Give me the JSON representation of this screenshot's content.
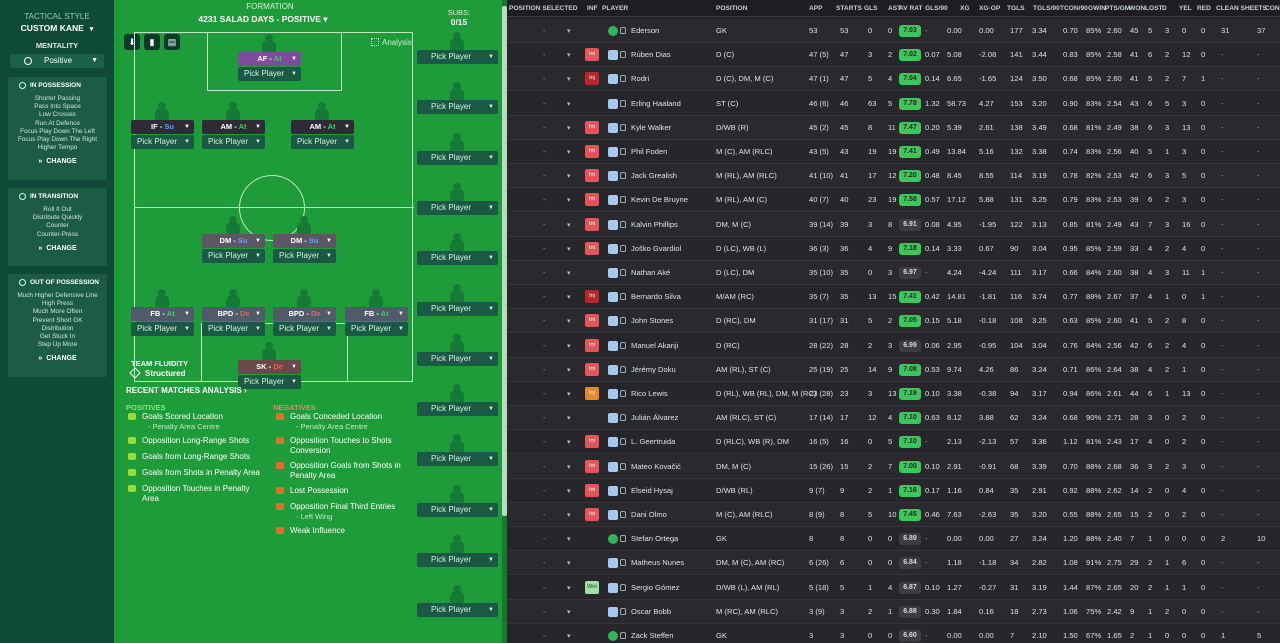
{
  "left": {
    "title": "TACTICAL STYLE",
    "name": "CUSTOM KANE",
    "mentality_label": "MENTALITY",
    "mentality_value": "Positive",
    "in_possession": {
      "title": "IN POSSESSION",
      "items": [
        "Shorter Passing",
        "Pass Into Space",
        "Low Crosses",
        "Run At Defence",
        "Focus Play Down The Left",
        "Focus Play Down The Right",
        "Higher Tempo"
      ],
      "change": "CHANGE"
    },
    "in_transition": {
      "title": "IN TRANSITION",
      "items": [
        "Roll It Out",
        "Distribute Quickly",
        "Counter",
        "Counter-Press"
      ],
      "change": "CHANGE"
    },
    "out_possession": {
      "title": "OUT OF POSSESSION",
      "items": [
        "Much Higher Defensive Line",
        "High Press",
        "Much More Often",
        "Prevent Short GK",
        "Distribution",
        "Get Stuck In",
        "Step Up More"
      ],
      "change": "CHANGE"
    }
  },
  "formation": {
    "header": "FORMATION",
    "name": "4231 SALAD DAYS - POSITIVE",
    "analysis": "Analysis",
    "pick": "Pick Player",
    "roles": [
      {
        "pos": "AF",
        "duty": "At",
        "duty_class": "",
        "style": "rpurp"
      },
      {
        "pos": "IF",
        "duty": "Su",
        "duty_class": "su",
        "style": ""
      },
      {
        "pos": "AM",
        "duty": "At",
        "duty_class": "",
        "style": ""
      },
      {
        "pos": "AM",
        "duty": "At",
        "duty_class": "",
        "style": ""
      },
      {
        "pos": "DM",
        "duty": "Su",
        "duty_class": "su",
        "style": "rdm"
      },
      {
        "pos": "DM",
        "duty": "Su",
        "duty_class": "su",
        "style": "rdm"
      },
      {
        "pos": "FB",
        "duty": "At",
        "duty_class": "",
        "style": "rfb"
      },
      {
        "pos": "BPD",
        "duty": "De",
        "duty_class": "de",
        "style": "rfb"
      },
      {
        "pos": "BPD",
        "duty": "De",
        "duty_class": "de",
        "style": "rfb"
      },
      {
        "pos": "FB",
        "duty": "At",
        "duty_class": "",
        "style": "rfb"
      },
      {
        "pos": "SK",
        "duty": "De",
        "duty_class": "de",
        "style": "rsk"
      }
    ],
    "fluidity_label": "TEAM FLUIDITY",
    "fluidity_value": "Structured",
    "recent": "RECENT MATCHES ANALYSIS",
    "positives_title": "POSITIVES",
    "negatives_title": "NEGATIVES",
    "positives": [
      {
        "t": "Goals Scored Location",
        "s": "- Penalty Area Centre"
      },
      {
        "t": "Opposition Long-Range Shots",
        "s": ""
      },
      {
        "t": "Goals from Long-Range Shots",
        "s": ""
      },
      {
        "t": "Goals from Shots in Penalty Area",
        "s": ""
      },
      {
        "t": "Opposition Touches in Penalty Area",
        "s": ""
      }
    ],
    "negatives": [
      {
        "t": "Goals Conceded Location",
        "s": "- Penalty Area Centre"
      },
      {
        "t": "Opposition Touches to Shots Conversion",
        "s": ""
      },
      {
        "t": "Opposition Goals from Shots in Penalty Area",
        "s": ""
      },
      {
        "t": "Lost Possession",
        "s": ""
      },
      {
        "t": "Opposition Final Third Entries",
        "s": "- Left Wing"
      },
      {
        "t": "Weak Influence",
        "s": ""
      }
    ]
  },
  "subs": {
    "header": "SUBS:",
    "count": "0/15",
    "pick": "Pick Player"
  },
  "table": {
    "headers": [
      "POSITION SELECTED",
      "INF",
      "PLAYER",
      "POSITION",
      "APP",
      "STARTS",
      "GLS",
      "AST",
      "AV RAT",
      "GLS/90",
      "XG",
      "XG-OP",
      "TGLS",
      "TGLS/90",
      "TCON/90",
      "GWIN",
      "PTS/GM",
      "WON",
      "LOST",
      "D",
      "YEL",
      "RED",
      "CLEAN SHEETS",
      "CONC"
    ],
    "rows": [
      {
        "inf": "",
        "shirt": "gk",
        "name": "Ederson",
        "pos": "GK",
        "app": "53",
        "starts": "53",
        "gls": "0",
        "ast": "0",
        "rat": "7.03",
        "rc": "g",
        "g90": "-",
        "xg": "0.00",
        "xgop": "0.00",
        "tgls": "177",
        "t90": "3.34",
        "tc90": "0.70",
        "gwin": "85%",
        "ptsgm": "2.60",
        "won": "45",
        "lost": "5",
        "d": "3",
        "yel": "0",
        "red": "0",
        "cs": "31",
        "conc": "37"
      },
      {
        "inf": "Int",
        "infc": "int",
        "shirt": "",
        "name": "Rúben Dias",
        "pos": "D (C)",
        "app": "47 (5)",
        "starts": "47",
        "gls": "3",
        "ast": "2",
        "rat": "7.02",
        "rc": "g",
        "g90": "0.07",
        "xg": "5.08",
        "xgop": "-2.08",
        "tgls": "141",
        "t90": "3.44",
        "tc90": "0.83",
        "gwin": "85%",
        "ptsgm": "2.58",
        "won": "41",
        "lost": "6",
        "d": "2",
        "yel": "12",
        "red": "0",
        "cs": "-",
        "conc": "-"
      },
      {
        "inf": "Inj",
        "infc": "inj",
        "shirt": "",
        "name": "Rodri",
        "pos": "D (C), DM, M (C)",
        "app": "47 (1)",
        "starts": "47",
        "gls": "5",
        "ast": "4",
        "rat": "7.04",
        "rc": "g",
        "g90": "0.14",
        "xg": "6.65",
        "xgop": "-1.65",
        "tgls": "124",
        "t90": "3.50",
        "tc90": "0.68",
        "gwin": "85%",
        "ptsgm": "2.60",
        "won": "41",
        "lost": "5",
        "d": "2",
        "yel": "7",
        "red": "1",
        "cs": "-",
        "conc": "-"
      },
      {
        "inf": "",
        "shirt": "",
        "name": "Erling Haaland",
        "pos": "ST (C)",
        "app": "46 (6)",
        "starts": "46",
        "gls": "63",
        "ast": "5",
        "rat": "7.78",
        "rc": "g",
        "g90": "1.32",
        "xg": "58.73",
        "xgop": "4.27",
        "tgls": "153",
        "t90": "3.20",
        "tc90": "0.90",
        "gwin": "83%",
        "ptsgm": "2.54",
        "won": "43",
        "lost": "6",
        "d": "5",
        "yel": "3",
        "red": "0",
        "cs": "-",
        "conc": "-"
      },
      {
        "inf": "Int",
        "infc": "int",
        "shirt": "",
        "name": "Kyle Walker",
        "pos": "D/WB (R)",
        "app": "45 (2)",
        "starts": "45",
        "gls": "8",
        "ast": "11",
        "rat": "7.47",
        "rc": "g",
        "g90": "0.20",
        "xg": "5.39",
        "xgop": "2.61",
        "tgls": "138",
        "t90": "3.49",
        "tc90": "0.68",
        "gwin": "81%",
        "ptsgm": "2.49",
        "won": "38",
        "lost": "6",
        "d": "3",
        "yel": "13",
        "red": "0",
        "cs": "-",
        "conc": "-"
      },
      {
        "inf": "Int",
        "infc": "int",
        "shirt": "",
        "name": "Phil Foden",
        "pos": "M (C), AM (RLC)",
        "app": "43 (5)",
        "starts": "43",
        "gls": "19",
        "ast": "19",
        "rat": "7.41",
        "rc": "g",
        "g90": "0.49",
        "xg": "13.84",
        "xgop": "5.16",
        "tgls": "132",
        "t90": "3.38",
        "tc90": "0.74",
        "gwin": "83%",
        "ptsgm": "2.56",
        "won": "40",
        "lost": "5",
        "d": "1",
        "yel": "3",
        "red": "0",
        "cs": "-",
        "conc": "-"
      },
      {
        "inf": "Int",
        "infc": "int",
        "shirt": "",
        "name": "Jack Grealish",
        "pos": "M (RL), AM (RLC)",
        "app": "41 (10)",
        "starts": "41",
        "gls": "17",
        "ast": "12",
        "rat": "7.20",
        "rc": "g",
        "g90": "0.48",
        "xg": "8.45",
        "xgop": "8.55",
        "tgls": "114",
        "t90": "3.19",
        "tc90": "0.78",
        "gwin": "82%",
        "ptsgm": "2.53",
        "won": "42",
        "lost": "6",
        "d": "3",
        "yel": "5",
        "red": "0",
        "cs": "-",
        "conc": "-"
      },
      {
        "inf": "Int",
        "infc": "int",
        "shirt": "",
        "name": "Kevin De Bruyne",
        "pos": "M (RL), AM (C)",
        "app": "40 (7)",
        "starts": "40",
        "gls": "23",
        "ast": "19",
        "rat": "7.58",
        "rc": "g",
        "g90": "0.57",
        "xg": "17.12",
        "xgop": "5.88",
        "tgls": "131",
        "t90": "3.25",
        "tc90": "0.79",
        "gwin": "83%",
        "ptsgm": "2.53",
        "won": "39",
        "lost": "6",
        "d": "2",
        "yel": "3",
        "red": "0",
        "cs": "-",
        "conc": "-"
      },
      {
        "inf": "Int",
        "infc": "int",
        "shirt": "",
        "name": "Kalvin Phillips",
        "pos": "DM, M (C)",
        "app": "39 (14)",
        "starts": "39",
        "gls": "3",
        "ast": "8",
        "rat": "6.91",
        "rc": "n",
        "g90": "0.08",
        "xg": "4.95",
        "xgop": "-1.95",
        "tgls": "122",
        "t90": "3.13",
        "tc90": "0.85",
        "gwin": "81%",
        "ptsgm": "2.49",
        "won": "43",
        "lost": "7",
        "d": "3",
        "yel": "16",
        "red": "0",
        "cs": "-",
        "conc": "-"
      },
      {
        "inf": "Int",
        "infc": "int",
        "shirt": "",
        "name": "Joško Gvardiol",
        "pos": "D (LC), WB (L)",
        "app": "36 (3)",
        "starts": "36",
        "gls": "4",
        "ast": "9",
        "rat": "7.18",
        "rc": "g",
        "g90": "0.14",
        "xg": "3.33",
        "xgop": "0.67",
        "tgls": "90",
        "t90": "3.04",
        "tc90": "0.95",
        "gwin": "85%",
        "ptsgm": "2.59",
        "won": "33",
        "lost": "4",
        "d": "2",
        "yel": "4",
        "red": "0",
        "cs": "-",
        "conc": "-"
      },
      {
        "inf": "",
        "shirt": "",
        "name": "Nathan Aké",
        "pos": "D (LC), DM",
        "app": "35 (10)",
        "starts": "35",
        "gls": "0",
        "ast": "3",
        "rat": "6.97",
        "rc": "n",
        "g90": "-",
        "xg": "4.24",
        "xgop": "-4.24",
        "tgls": "111",
        "t90": "3.17",
        "tc90": "0.66",
        "gwin": "84%",
        "ptsgm": "2.60",
        "won": "38",
        "lost": "4",
        "d": "3",
        "yel": "11",
        "red": "1",
        "cs": "-",
        "conc": "-"
      },
      {
        "inf": "Inj",
        "infc": "inj",
        "shirt": "",
        "name": "Bernardo Silva",
        "pos": "M/AM (RC)",
        "app": "35 (7)",
        "starts": "35",
        "gls": "13",
        "ast": "15",
        "rat": "7.41",
        "rc": "g",
        "g90": "0.42",
        "xg": "14.81",
        "xgop": "-1.81",
        "tgls": "116",
        "t90": "3.74",
        "tc90": "0.77",
        "gwin": "88%",
        "ptsgm": "2.67",
        "won": "37",
        "lost": "4",
        "d": "1",
        "yel": "0",
        "red": "1",
        "cs": "-",
        "conc": "-"
      },
      {
        "inf": "Int",
        "infc": "int",
        "shirt": "",
        "name": "John Stones",
        "pos": "D (RC), DM",
        "app": "31 (17)",
        "starts": "31",
        "gls": "5",
        "ast": "2",
        "rat": "7.05",
        "rc": "g",
        "g90": "0.15",
        "xg": "5.18",
        "xgop": "-0.18",
        "tgls": "108",
        "t90": "3.25",
        "tc90": "0.63",
        "gwin": "85%",
        "ptsgm": "2.60",
        "won": "41",
        "lost": "5",
        "d": "2",
        "yel": "8",
        "red": "0",
        "cs": "-",
        "conc": "-"
      },
      {
        "inf": "Int",
        "infc": "int",
        "shirt": "",
        "name": "Manuel Akanji",
        "pos": "D (RC)",
        "app": "28 (22)",
        "starts": "28",
        "gls": "2",
        "ast": "3",
        "rat": "6.99",
        "rc": "n",
        "g90": "0.06",
        "xg": "2.95",
        "xgop": "-0.95",
        "tgls": "104",
        "t90": "3.04",
        "tc90": "0.76",
        "gwin": "84%",
        "ptsgm": "2.56",
        "won": "42",
        "lost": "6",
        "d": "2",
        "yel": "4",
        "red": "0",
        "cs": "-",
        "conc": "-"
      },
      {
        "inf": "Int",
        "infc": "int",
        "shirt": "",
        "name": "Jérémy Doku",
        "pos": "AM (RL), ST (C)",
        "app": "25 (19)",
        "starts": "25",
        "gls": "14",
        "ast": "9",
        "rat": "7.08",
        "rc": "g",
        "g90": "0.53",
        "xg": "9.74",
        "xgop": "4.26",
        "tgls": "86",
        "t90": "3.24",
        "tc90": "0.71",
        "gwin": "86%",
        "ptsgm": "2.64",
        "won": "38",
        "lost": "4",
        "d": "2",
        "yel": "1",
        "red": "0",
        "cs": "-",
        "conc": "-"
      },
      {
        "inf": "Inj",
        "infc": "inj2",
        "shirt": "",
        "name": "Rico Lewis",
        "pos": "D (RL), WB (RL), DM, M (RC)",
        "app": "23 (28)",
        "starts": "23",
        "gls": "3",
        "ast": "13",
        "rat": "7.19",
        "rc": "g",
        "g90": "0.10",
        "xg": "3.38",
        "xgop": "-0.38",
        "tgls": "94",
        "t90": "3.17",
        "tc90": "0.94",
        "gwin": "86%",
        "ptsgm": "2.61",
        "won": "44",
        "lost": "6",
        "d": "1",
        "yel": "13",
        "red": "0",
        "cs": "-",
        "conc": "-"
      },
      {
        "inf": "",
        "shirt": "",
        "name": "Julián Álvarez",
        "pos": "AM (RLC), ST (C)",
        "app": "17 (14)",
        "starts": "17",
        "gls": "12",
        "ast": "4",
        "rat": "7.10",
        "rc": "g",
        "g90": "0.63",
        "xg": "8.12",
        "xgop": "3.88",
        "tgls": "62",
        "t90": "3.24",
        "tc90": "0.68",
        "gwin": "90%",
        "ptsgm": "2.71",
        "won": "28",
        "lost": "3",
        "d": "0",
        "yel": "2",
        "red": "0",
        "cs": "-",
        "conc": "-"
      },
      {
        "inf": "Int",
        "infc": "int",
        "shirt": "",
        "name": "L. Geertruida",
        "pos": "D (RLC), WB (R), DM",
        "app": "16 (5)",
        "starts": "16",
        "gls": "0",
        "ast": "5",
        "rat": "7.10",
        "rc": "g",
        "g90": "-",
        "xg": "2.13",
        "xgop": "-2.13",
        "tgls": "57",
        "t90": "3.36",
        "tc90": "1.12",
        "gwin": "81%",
        "ptsgm": "2.43",
        "won": "17",
        "lost": "4",
        "d": "0",
        "yel": "2",
        "red": "0",
        "cs": "-",
        "conc": "-"
      },
      {
        "inf": "Int",
        "infc": "int",
        "shirt": "",
        "name": "Mateo Kovačić",
        "pos": "DM, M (C)",
        "app": "15 (26)",
        "starts": "15",
        "gls": "2",
        "ast": "7",
        "rat": "7.00",
        "rc": "g",
        "g90": "0.10",
        "xg": "2.91",
        "xgop": "-0.91",
        "tgls": "68",
        "t90": "3.39",
        "tc90": "0.70",
        "gwin": "88%",
        "ptsgm": "2.68",
        "won": "36",
        "lost": "3",
        "d": "2",
        "yel": "3",
        "red": "0",
        "cs": "-",
        "conc": "-"
      },
      {
        "inf": "Int",
        "infc": "int",
        "shirt": "",
        "name": "Elseid Hysaj",
        "pos": "D/WB (RL)",
        "app": "9 (7)",
        "starts": "9",
        "gls": "2",
        "ast": "1",
        "rat": "7.16",
        "rc": "g",
        "g90": "0.17",
        "xg": "1.16",
        "xgop": "0.84",
        "tgls": "35",
        "t90": "2.91",
        "tc90": "0.92",
        "gwin": "88%",
        "ptsgm": "2.62",
        "won": "14",
        "lost": "2",
        "d": "0",
        "yel": "4",
        "red": "0",
        "cs": "-",
        "conc": "-"
      },
      {
        "inf": "Int",
        "infc": "int",
        "shirt": "",
        "name": "Dani Olmo",
        "pos": "M (C), AM (RLC)",
        "app": "8 (9)",
        "starts": "8",
        "gls": "5",
        "ast": "10",
        "rat": "7.45",
        "rc": "g",
        "g90": "0.46",
        "xg": "7.63",
        "xgop": "-2.63",
        "tgls": "35",
        "t90": "3.20",
        "tc90": "0.55",
        "gwin": "88%",
        "ptsgm": "2.65",
        "won": "15",
        "lost": "2",
        "d": "0",
        "yel": "2",
        "red": "0",
        "cs": "-",
        "conc": "-"
      },
      {
        "inf": "",
        "shirt": "gk",
        "name": "Stefan Ortega",
        "pos": "GK",
        "app": "8",
        "starts": "8",
        "gls": "0",
        "ast": "0",
        "rat": "6.89",
        "rc": "n",
        "g90": "-",
        "xg": "0.00",
        "xgop": "0.00",
        "tgls": "27",
        "t90": "3.24",
        "tc90": "1.20",
        "gwin": "88%",
        "ptsgm": "2.40",
        "won": "7",
        "lost": "1",
        "d": "0",
        "yel": "0",
        "red": "0",
        "cs": "2",
        "conc": "10"
      },
      {
        "inf": "",
        "shirt": "",
        "name": "Matheus Nunes",
        "pos": "DM, M (C), AM (RC)",
        "app": "6 (26)",
        "starts": "6",
        "gls": "0",
        "ast": "0",
        "rat": "6.84",
        "rc": "n",
        "g90": "-",
        "xg": "1.18",
        "xgop": "-1.18",
        "tgls": "34",
        "t90": "2.82",
        "tc90": "1.08",
        "gwin": "91%",
        "ptsgm": "2.75",
        "won": "29",
        "lost": "2",
        "d": "1",
        "yel": "6",
        "red": "0",
        "cs": "-",
        "conc": "-"
      },
      {
        "inf": "Wnt",
        "infc": "wrn",
        "shirt": "",
        "name": "Sergio Gómez",
        "pos": "D/WB (L), AM (RL)",
        "app": "5 (18)",
        "starts": "5",
        "gls": "1",
        "ast": "4",
        "rat": "6.87",
        "rc": "n",
        "g90": "0.10",
        "xg": "1.27",
        "xgop": "-0.27",
        "tgls": "31",
        "t90": "3.19",
        "tc90": "1.44",
        "gwin": "87%",
        "ptsgm": "2.65",
        "won": "20",
        "lost": "2",
        "d": "1",
        "yel": "1",
        "red": "0",
        "cs": "-",
        "conc": "-"
      },
      {
        "inf": "",
        "shirt": "",
        "name": "Oscar Bobb",
        "pos": "M (RC), AM (RLC)",
        "app": "3 (9)",
        "starts": "3",
        "gls": "2",
        "ast": "1",
        "rat": "6.88",
        "rc": "n",
        "g90": "0.30",
        "xg": "1.84",
        "xgop": "0.16",
        "tgls": "18",
        "t90": "2.73",
        "tc90": "1.06",
        "gwin": "75%",
        "ptsgm": "2.42",
        "won": "9",
        "lost": "1",
        "d": "2",
        "yel": "0",
        "red": "0",
        "cs": "-",
        "conc": "-"
      },
      {
        "inf": "",
        "shirt": "gk",
        "name": "Zack Steffen",
        "pos": "GK",
        "app": "3",
        "starts": "3",
        "gls": "0",
        "ast": "0",
        "rat": "6.60",
        "rc": "n",
        "g90": "-",
        "xg": "0.00",
        "xgop": "0.00",
        "tgls": "7",
        "t90": "2.10",
        "tc90": "1.50",
        "gwin": "67%",
        "ptsgm": "1.65",
        "won": "2",
        "lost": "1",
        "d": "0",
        "yel": "0",
        "red": "0",
        "cs": "1",
        "conc": "5"
      }
    ]
  }
}
